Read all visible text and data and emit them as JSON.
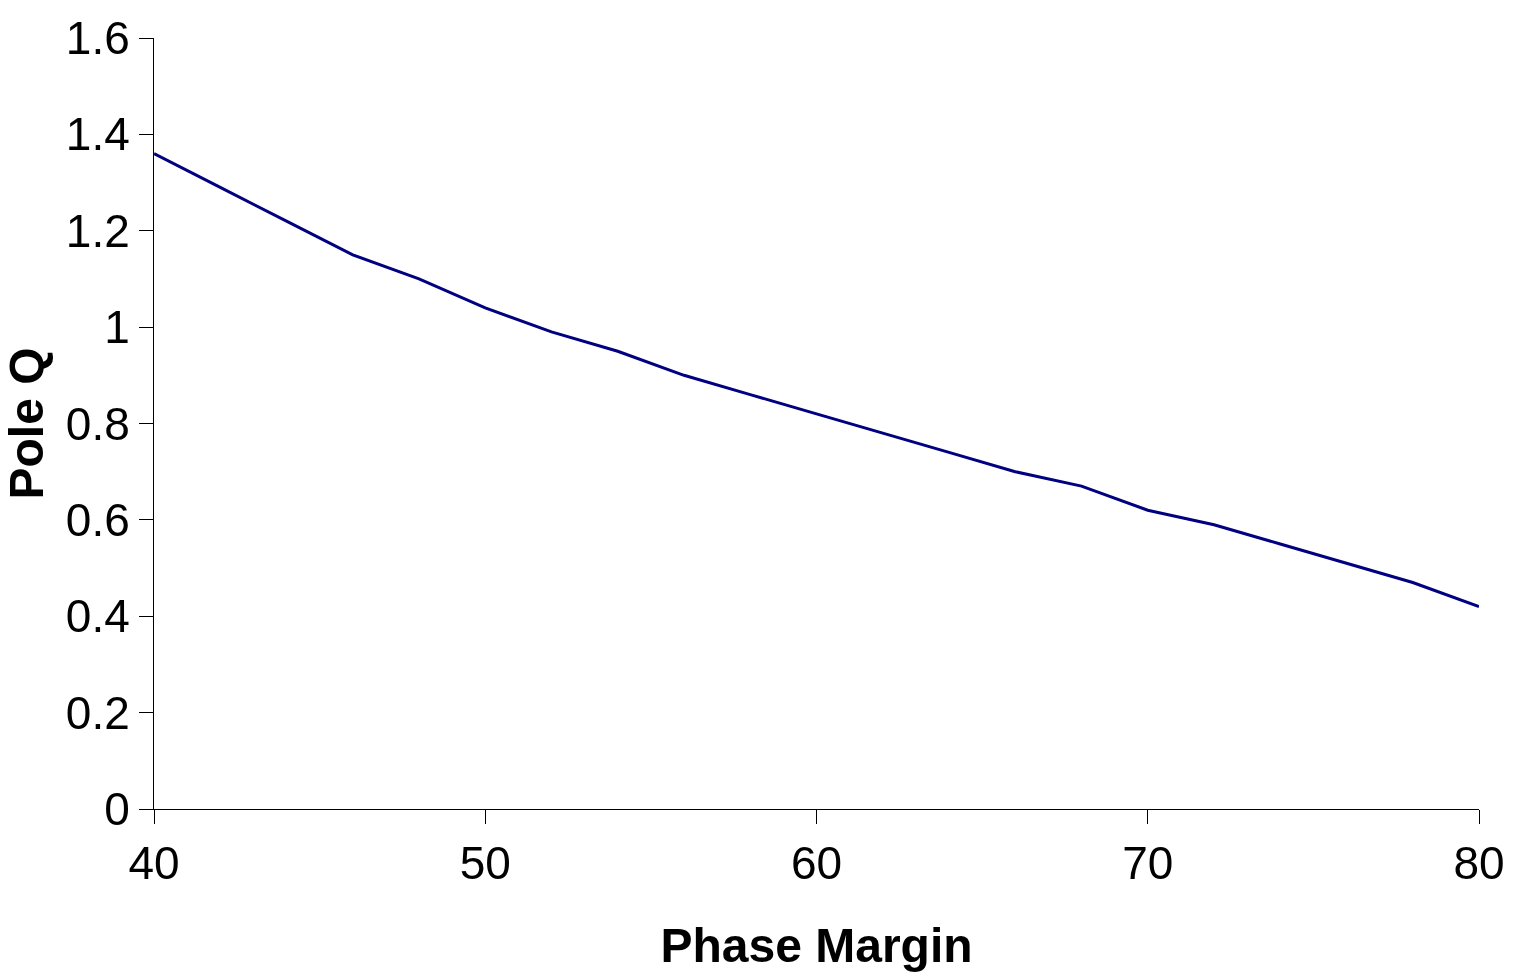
{
  "chart_data": {
    "type": "line",
    "xlabel": "Phase Margin",
    "ylabel": "Pole Q",
    "x": [
      40,
      42,
      44,
      46,
      48,
      50,
      52,
      54,
      56,
      58,
      60,
      62,
      64,
      66,
      68,
      70,
      72,
      74,
      76,
      78,
      80
    ],
    "series": [
      {
        "color": "#000080",
        "values": [
          1.36,
          1.29,
          1.22,
          1.15,
          1.1,
          1.04,
          0.99,
          0.95,
          0.9,
          0.86,
          0.82,
          0.78,
          0.74,
          0.7,
          0.67,
          0.62,
          0.59,
          0.55,
          0.51,
          0.47,
          0.42
        ]
      }
    ],
    "xlim": [
      40,
      80
    ],
    "xticks": [
      40,
      50,
      60,
      70,
      80
    ],
    "ylim": [
      0,
      1.6
    ],
    "yticks": [
      0,
      {
        "value": 0.2,
        "label": "0.2"
      },
      {
        "value": 0.4,
        "label": "0.4"
      },
      {
        "value": 0.6,
        "label": "0.6"
      },
      {
        "value": 0.8,
        "label": "0.8"
      },
      1,
      {
        "value": 1.2,
        "label": "1.2"
      },
      {
        "value": 1.4,
        "label": "1.4"
      },
      {
        "value": 1.6,
        "label": "1.6"
      }
    ],
    "marker": "none",
    "line_style": "solid"
  }
}
